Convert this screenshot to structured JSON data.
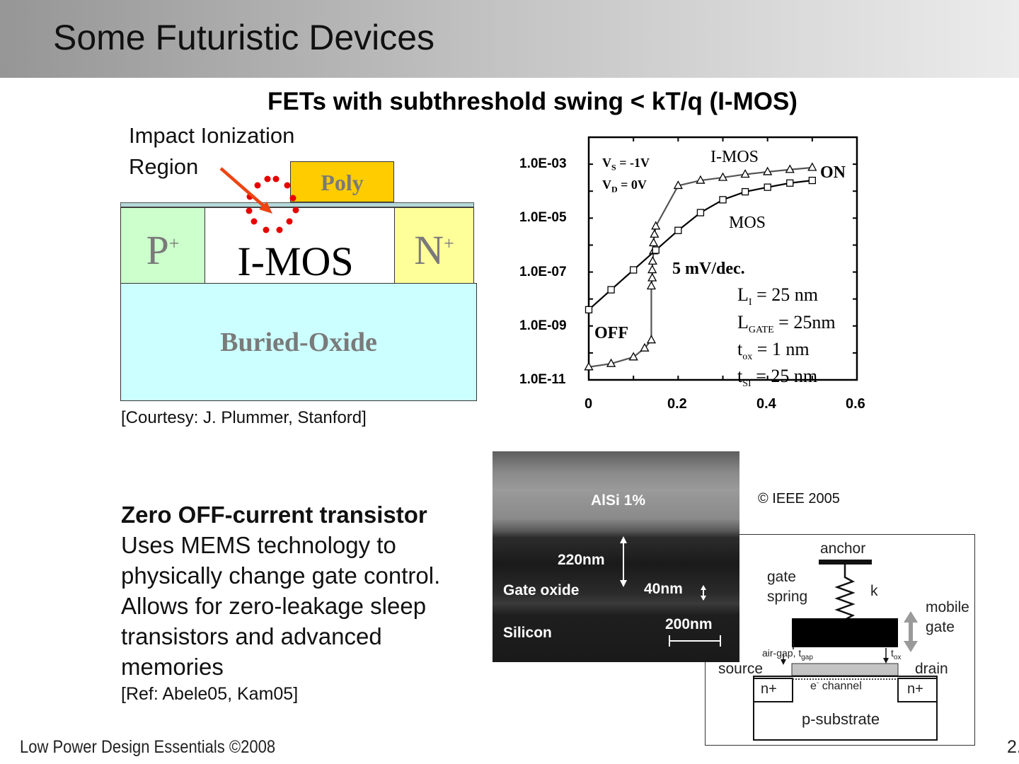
{
  "header": {
    "title": "Some Futuristic Devices"
  },
  "subtitle": "FETs with subthreshold swing < kT/q (I-MOS)",
  "imos_diagram": {
    "impact_label_line1": "Impact Ionization",
    "impact_label_line2": "Region",
    "poly": "Poly",
    "p_plus": "P",
    "n_plus": "N",
    "plus": "+",
    "channel": "I-MOS",
    "buried_oxide": "Buried-Oxide",
    "courtesy": "[Courtesy: J. Plummer, Stanford]"
  },
  "chart_data": {
    "type": "line",
    "y_scale": "log",
    "ylim": [
      1e-11,
      0.01
    ],
    "xlim": [
      0,
      0.6
    ],
    "x_ticks": [
      "0",
      "0.2",
      "0.4",
      "0.6"
    ],
    "y_ticks": [
      "1.0E-03",
      "1.0E-05",
      "1.0E-07",
      "1.0E-09",
      "1.0E-11"
    ],
    "series": [
      {
        "name": "I-MOS",
        "marker": "triangle",
        "x": [
          0.0,
          0.05,
          0.1,
          0.125,
          0.14,
          0.14,
          0.142,
          0.142,
          0.143,
          0.145,
          0.145,
          0.147,
          0.15,
          0.2,
          0.25,
          0.3,
          0.35,
          0.4,
          0.45,
          0.5
        ],
        "y": [
          3e-11,
          4e-11,
          7e-11,
          1.5e-10,
          3e-10,
          3e-08,
          6e-08,
          1.2e-07,
          2.5e-07,
          6e-07,
          1.2e-06,
          2.5e-06,
          5e-06,
          0.00016,
          0.00025,
          0.00032,
          0.00042,
          0.00052,
          0.00063,
          0.00075
        ]
      },
      {
        "name": "MOS",
        "marker": "square",
        "x": [
          0.0,
          0.05,
          0.1,
          0.15,
          0.2,
          0.25,
          0.3,
          0.35,
          0.4,
          0.45,
          0.5
        ],
        "y": [
          4e-09,
          2.2e-08,
          1.2e-07,
          6.5e-07,
          3.5e-06,
          1.6e-05,
          4.8e-05,
          9.5e-05,
          0.00014,
          0.0002,
          0.00025
        ]
      }
    ],
    "annotations": {
      "vs": "V",
      "vs_sub": "S",
      "vs_rest": " = -1V",
      "vd": "V",
      "vd_sub": "D",
      "vd_rest": " = 0V",
      "imos_label": "I-MOS",
      "mos_label": "MOS",
      "on": "ON",
      "off": "OFF",
      "swing": "5 mV/dec.",
      "li": "L",
      "li_sub": "I",
      "li_rest": " = 25 nm",
      "lgate": "L",
      "lgate_sub": "GATE",
      "lgate_rest": " = 25nm",
      "tox": "t",
      "tox_sub": "ox",
      "tox_rest": " = 1 nm",
      "tsi": "t",
      "tsi_sub": "SI",
      "tsi_rest": " = 25 nm"
    }
  },
  "ieee": "© IEEE 2005",
  "mems": {
    "heading": "Zero OFF-current transistor",
    "body": "Uses MEMS technology to physically change gate control. Allows for zero-leakage sleep transistors and advanced memories",
    "ref": "[Ref: Abele05, Kam05]"
  },
  "sem_image": {
    "alsi": "AlSi 1%",
    "d220": "220nm",
    "gate_oxide": "Gate oxide",
    "d40": "40nm",
    "silicon": "Silicon",
    "d200": "200nm"
  },
  "mems_diagram": {
    "anchor": "anchor",
    "gate_spring_1": "gate",
    "gate_spring_2": "spring",
    "k": "k",
    "mobile_1": "mobile",
    "mobile_2": "gate",
    "airgap": "air-gap, t",
    "airgap_sub": "gap",
    "tox": "t",
    "tox_sub": "ox",
    "source": "source",
    "drain": "drain",
    "channel": "e",
    "channel_sup": "-",
    "channel_rest": " channel",
    "n_left": "n+",
    "n_right": "n+",
    "substrate": "p-substrate"
  },
  "footer": {
    "left": "Low Power Design Essentials ©2008",
    "right": "2."
  }
}
